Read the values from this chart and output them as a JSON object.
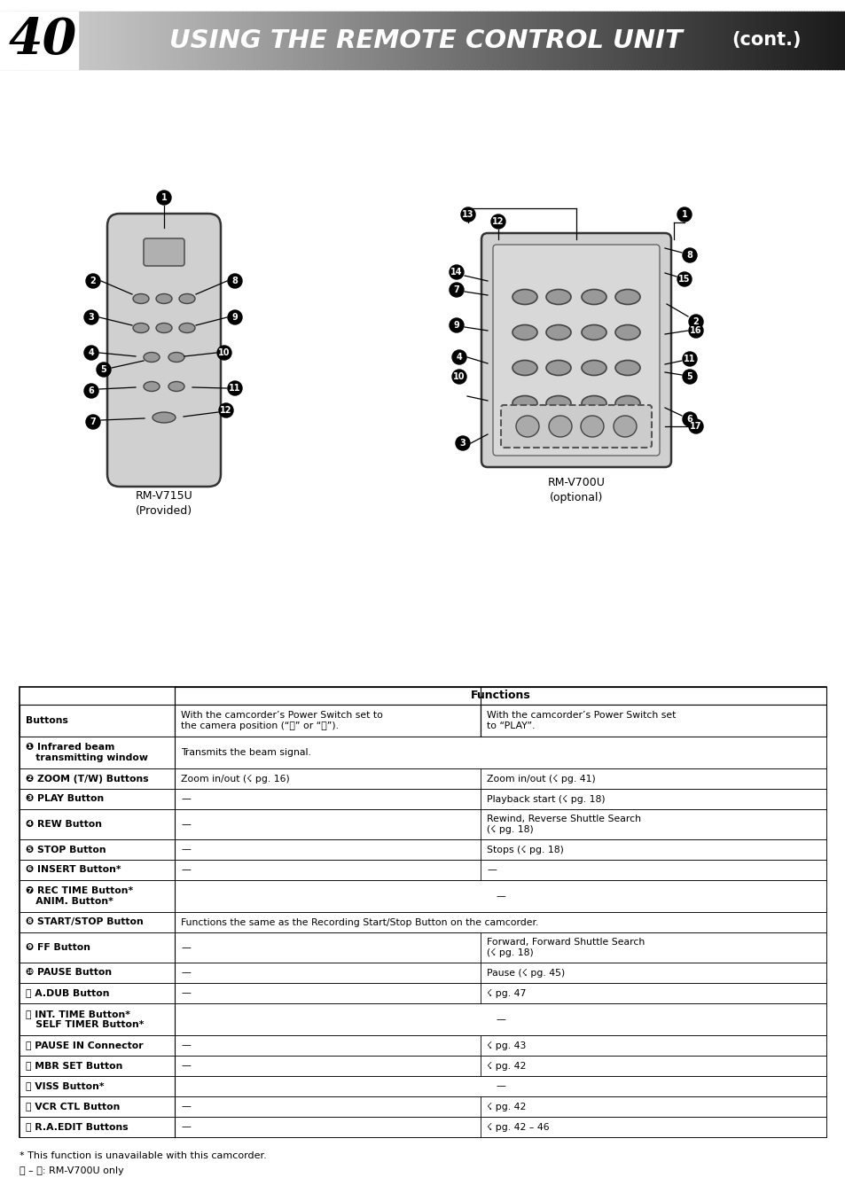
{
  "page_num": "40",
  "title_main": "USING THE REMOTE CONTROL UNIT",
  "title_cont": "(cont.)",
  "rm_v715u_label": "RM-V715U\n(Provided)",
  "rm_v700u_label": "RM-V700U\n(optional)",
  "table_header_col0": "Buttons",
  "table_header_functions": "Functions",
  "table_header_col1": "With the camcorder’s Power Switch set to\nthe camera position (“Ⓐ” or “Ⓞ”).",
  "table_header_col2": "With the camcorder’s Power Switch set\nto “PLAY”.",
  "rows": [
    {
      "btn": "❶ Infrared beam\n   transmitting window",
      "col1": "Transmits the beam signal.",
      "col2": "",
      "col2_span": true
    },
    {
      "btn": "❷ ZOOM (T/W) Buttons",
      "col1": "Zoom in/out (☇ pg. 16)",
      "col2": "Zoom in/out (☇ pg. 41)",
      "col2_span": false
    },
    {
      "btn": "❸ PLAY Button",
      "col1": "—",
      "col2": "Playback start (☇ pg. 18)",
      "col2_span": false
    },
    {
      "btn": "❹ REW Button",
      "col1": "—",
      "col2": "Rewind, Reverse Shuttle Search\n(☇ pg. 18)",
      "col2_span": false
    },
    {
      "btn": "❺ STOP Button",
      "col1": "—",
      "col2": "Stops (☇ pg. 18)",
      "col2_span": false
    },
    {
      "btn": "❻ INSERT Button*",
      "col1": "—",
      "col2": "—",
      "col2_span": false
    },
    {
      "btn": "❼ REC TIME Button*\n   ANIM. Button*",
      "col1": "",
      "col2": "—",
      "col2_span": true
    },
    {
      "btn": "❽ START/STOP Button",
      "col1": "Functions the same as the Recording Start/Stop Button on the camcorder.",
      "col2": "",
      "col2_span": true
    },
    {
      "btn": "❾ FF Button",
      "col1": "—",
      "col2": "Forward, Forward Shuttle Search\n(☇ pg. 18)",
      "col2_span": false
    },
    {
      "btn": "❿ PAUSE Button",
      "col1": "—",
      "col2": "Pause (☇ pg. 45)",
      "col2_span": false
    },
    {
      "btn": "Ⓐ A.DUB Button",
      "col1": "—",
      "col2": "☇ pg. 47",
      "col2_span": false
    },
    {
      "btn": "Ⓑ INT. TIME Button*\n   SELF TIMER Button*",
      "col1": "",
      "col2": "—",
      "col2_span": true
    },
    {
      "btn": "Ⓒ PAUSE IN Connector",
      "col1": "—",
      "col2": "☇ pg. 43",
      "col2_span": false
    },
    {
      "btn": "Ⓓ MBR SET Button",
      "col1": "—",
      "col2": "☇ pg. 42",
      "col2_span": false
    },
    {
      "btn": "Ⓔ VISS Button*",
      "col1": "",
      "col2": "—",
      "col2_span": true
    },
    {
      "btn": "Ⓕ VCR CTL Button",
      "col1": "—",
      "col2": "☇ pg. 42",
      "col2_span": false
    },
    {
      "btn": "Ⓖ R.A.EDIT Buttons",
      "col1": "—",
      "col2": "☇ pg. 42 – 46",
      "col2_span": false
    }
  ],
  "footnote1": "* This function is unavailable with this camcorder.",
  "footnote2": "Ⓒ – Ⓖ: RM-V700U only",
  "bg_color": "#ffffff"
}
